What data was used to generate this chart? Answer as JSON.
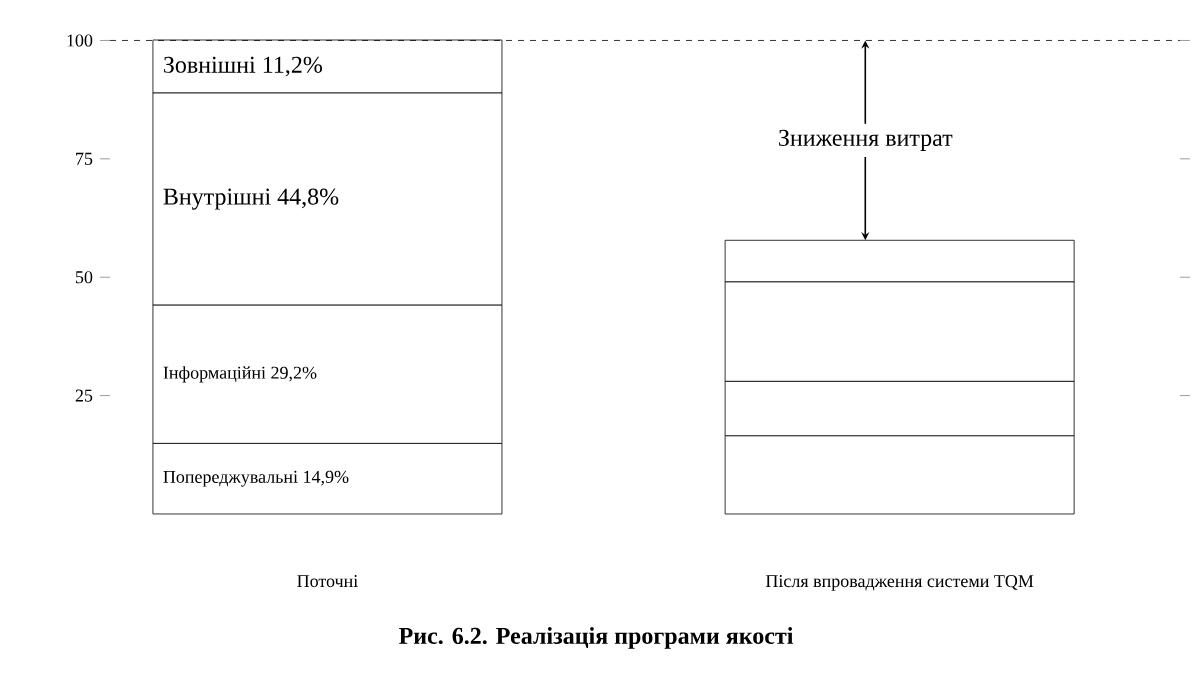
{
  "chart_data": {
    "type": "bar",
    "stacked": true,
    "title": "Рис. 6.2. Реалізація програми якості",
    "categories": [
      "Поточні",
      "Після впровадження системи TQM"
    ],
    "series": [
      {
        "name": "Попереджувальні",
        "color": "#ffffff",
        "values": [
          14.9,
          16.5
        ],
        "value_labels": [
          "14,9%",
          null
        ]
      },
      {
        "name": "Інформаційні",
        "color": "#ffffff",
        "values": [
          29.2,
          11.5
        ],
        "value_labels": [
          "29,2%",
          null
        ]
      },
      {
        "name": "Внутрішні",
        "color": "#ffffff",
        "values": [
          44.8,
          21
        ],
        "value_labels": [
          "44,8%",
          null
        ]
      },
      {
        "name": "Зовнішні",
        "color": "#ffffff",
        "values": [
          11.2,
          8.8
        ],
        "value_labels": [
          "11,2%",
          null
        ]
      }
    ],
    "ylim": [
      0,
      100.1
    ],
    "yticks": [
      25,
      50,
      75,
      100
    ],
    "ref_lines": [
      {
        "axis": "y",
        "value": 100,
        "line_style": "dashed"
      }
    ],
    "annotations": [
      "Зниження витрат"
    ]
  }
}
